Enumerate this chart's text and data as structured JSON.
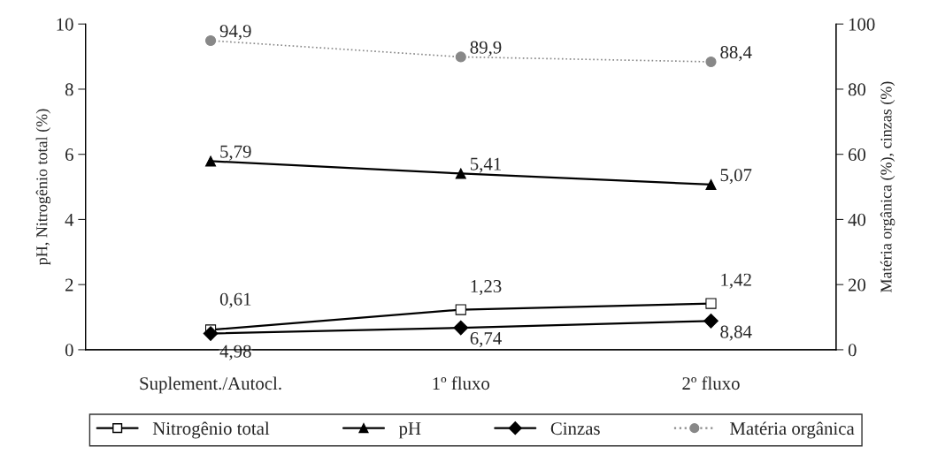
{
  "chart_data": {
    "type": "line",
    "ylabel": "pH, Nitrogênio total (%)",
    "y2label": "Matéria orgânica (%), cinzas (%)",
    "categories": [
      "Suplement./Autocl.",
      "1º fluxo",
      "2º fluxo"
    ],
    "ylim": [
      0,
      10
    ],
    "yticks": [
      0,
      2,
      4,
      6,
      8,
      10
    ],
    "y2lim": [
      0,
      100
    ],
    "y2ticks": [
      0,
      20,
      40,
      60,
      80,
      100
    ],
    "grid": false,
    "legend": "bottom",
    "series": [
      {
        "name": "Nitrogênio total",
        "color": "#000000",
        "marker": "square",
        "line_style": "solid",
        "values": [
          0.61,
          1.23,
          1.42
        ],
        "value_labels": [
          "0,61",
          "1,23",
          "1,42"
        ]
      },
      {
        "name": "pH",
        "color": "#000000",
        "marker": "triangle",
        "line_style": "solid",
        "values": [
          5.79,
          5.41,
          5.07
        ],
        "value_labels": [
          "5,79",
          "5,41",
          "5,07"
        ]
      },
      {
        "name": "Cinzas",
        "color": "#000000",
        "marker": "diamond",
        "line_style": "solid",
        "axis": "y2",
        "values": [
          4.98,
          6.74,
          8.84
        ],
        "value_labels": [
          "4,98",
          "6,74",
          "8,84"
        ]
      },
      {
        "name": "Matéria orgânica",
        "color": "#888888",
        "marker": "circle",
        "line_style": "dotted",
        "axis": "y2",
        "values": [
          94.9,
          89.9,
          88.4
        ],
        "value_labels": [
          "94,9",
          "89,9",
          "88,4"
        ]
      }
    ]
  }
}
